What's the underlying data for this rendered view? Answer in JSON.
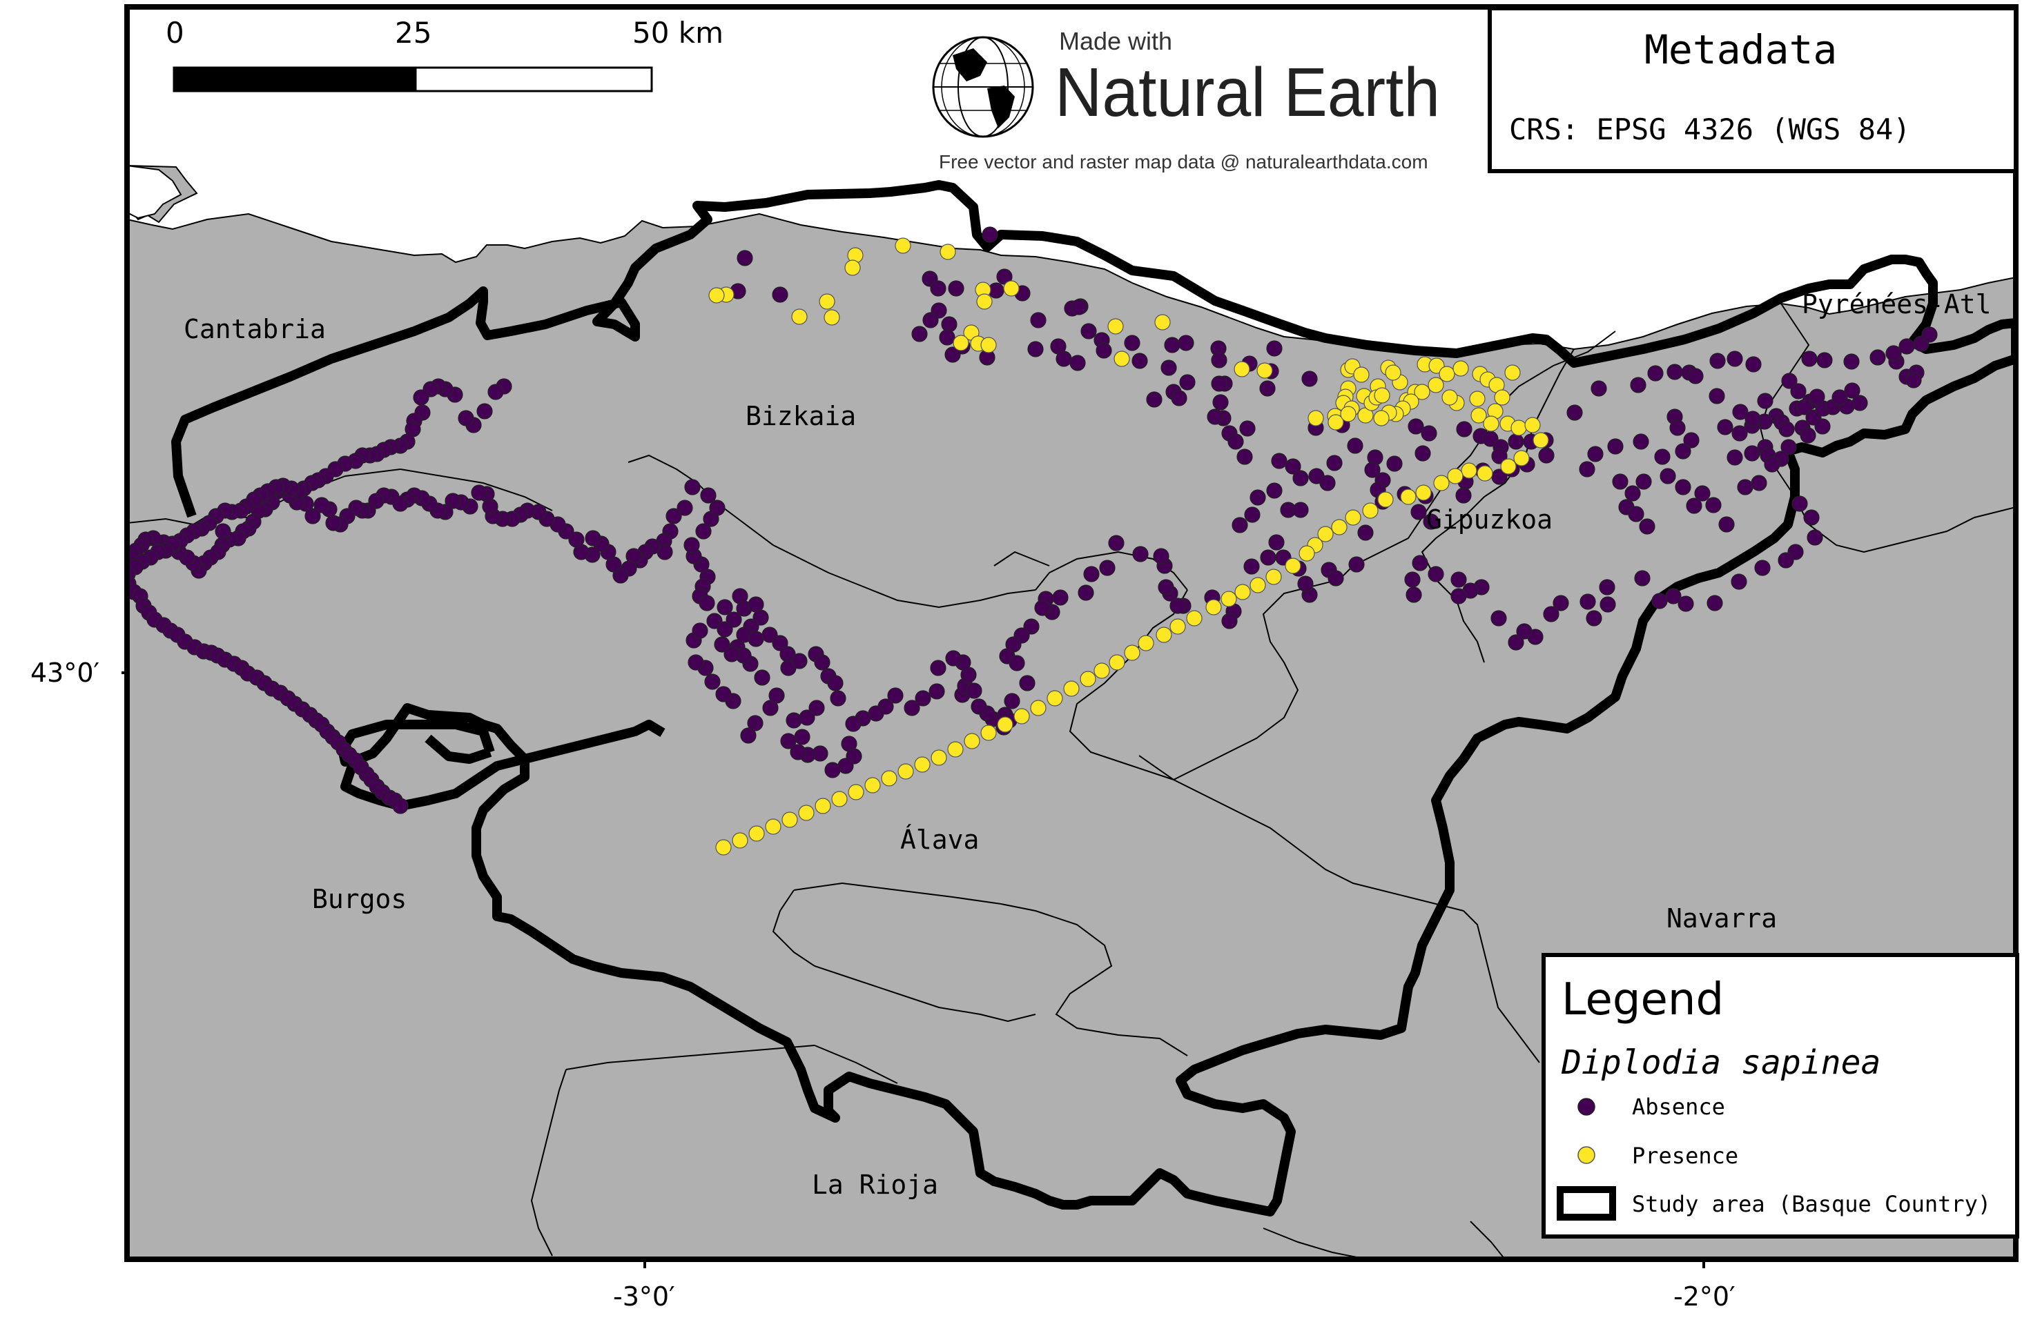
{
  "scale_bar": {
    "label_start": "0",
    "label_mid": "25",
    "label_end": "50 km"
  },
  "attribution": {
    "made_with": "Made with",
    "brand": "Natural Earth",
    "footer": "Free vector and raster map data @ naturalearthdata.com"
  },
  "metadata": {
    "title": "Metadata",
    "crs": "CRS: EPSG 4326 (WGS 84)"
  },
  "regions": [
    {
      "name": "Cantabria"
    },
    {
      "name": "Bizkaia"
    },
    {
      "name": "Gipuzkoa"
    },
    {
      "name": "Pyrénées-Atl"
    },
    {
      "name": "Álava"
    },
    {
      "name": "Burgos"
    },
    {
      "name": "Navarra"
    },
    {
      "name": "La Rioja"
    }
  ],
  "axes": {
    "lat_tick": "43°0′",
    "lon_ticks": [
      "-3°0′",
      "-2°0′"
    ]
  },
  "legend": {
    "title": "Legend",
    "species": "Diplodia sapinea",
    "absence_label": "Absence",
    "presence_label": "Presence",
    "study_area_label": "Study area (Basque Country)"
  },
  "colors": {
    "land": "#b0b0b0",
    "absence": "#440154",
    "presence": "#fde725",
    "study_area_outline": "#000000"
  }
}
